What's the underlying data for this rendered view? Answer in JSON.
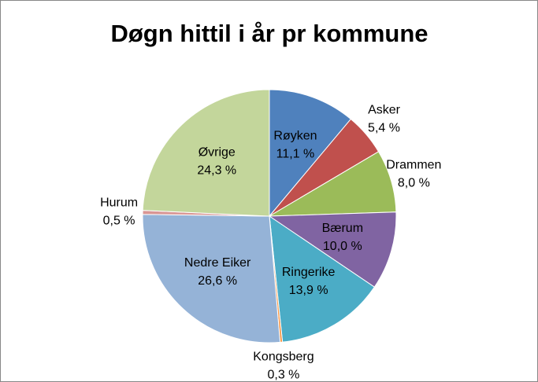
{
  "chart_data": {
    "type": "pie",
    "title": "Døgn hittil i år pr kommune",
    "categories": [
      "Røyken",
      "Asker",
      "Drammen",
      "Bærum",
      "Ringerike",
      "Kongsberg",
      "Nedre Eiker",
      "Hurum",
      "Øvrige"
    ],
    "values": [
      11.1,
      5.4,
      8.0,
      10.0,
      13.9,
      0.3,
      26.6,
      0.5,
      24.3
    ],
    "value_labels": [
      "11,1 %",
      "5,4 %",
      "8,0 %",
      "10,0 %",
      "13,9 %",
      "0,3 %",
      "26,6 %",
      "0,5 %",
      "24,3 %"
    ],
    "colors": [
      "#4f81bd",
      "#c0504d",
      "#9bbb59",
      "#8064a2",
      "#4bacc6",
      "#f79646",
      "#95b3d7",
      "#d99694",
      "#c3d69b"
    ]
  }
}
